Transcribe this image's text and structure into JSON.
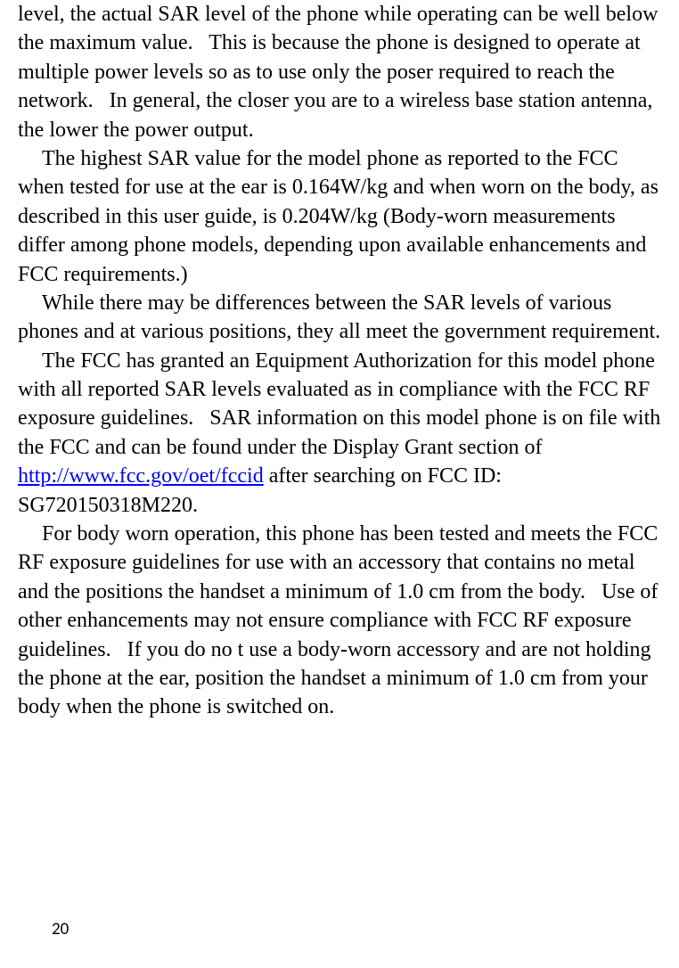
{
  "paragraphs": {
    "p1_part1": "level, the actual SAR level of the phone while operating can be well below the maximum value.",
    "p1_part2": "This is because the phone is designed to operate at multiple power levels so as to use only the poser required to reach the network.",
    "p1_part3": "In general, the closer you are to a wireless base station antenna, the lower the power output.",
    "p2": "The highest SAR value for the model phone as reported to the FCC when tested for use at the ear is 0.164W/kg and when worn on the body, as described in this user guide, is 0.204W/kg (Body-worn measurements differ among phone models, depending upon available enhancements and FCC requirements.)",
    "p3": "While there may be differences between the SAR levels of various phones and at various positions, they all meet the government requirement.",
    "p4_part1": "The FCC has granted an Equipment Authorization for this model phone with all reported SAR levels evaluated as in compliance with the FCC RF exposure guidelines.",
    "p4_part2": "SAR information on this model phone is on file with the FCC and can be found under the Display Grant section of ",
    "p4_link": "http://www.fcc.gov/oet/fccid",
    "p4_part3": " after searching on FCC ID: SG720150318M220.",
    "p5_part1": "For body worn operation, this phone has been tested and meets the FCC RF exposure guidelines for use with an accessory that contains no metal and the positions the handset a minimum of 1.0 cm from the body.",
    "p5_part2": "Use of other enhancements may not ensure compliance with FCC RF exposure guidelines.",
    "p5_part3": "If you do no t use a body-worn accessory and are not holding the phone at the ear, position the handset a minimum of 1.0 cm from your body when the phone is switched on."
  },
  "page_number": "20",
  "link_url": "http://www.fcc.gov/oet/fccid"
}
